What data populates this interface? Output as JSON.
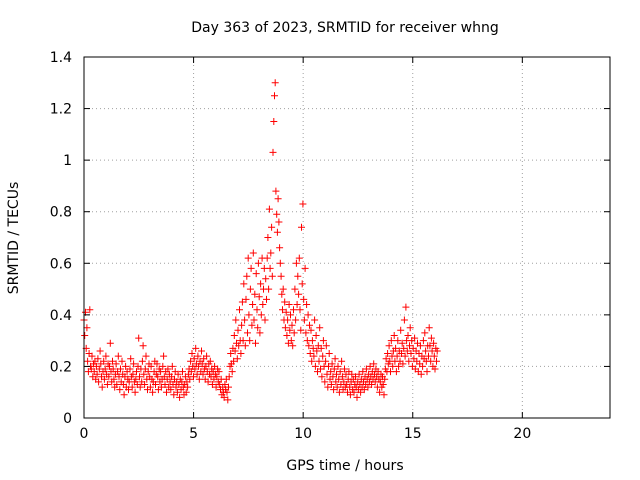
{
  "chart_data": {
    "type": "scatter",
    "title": "Day 363 of 2023, SRMTID for receiver whng",
    "xlabel": "GPS time / hours",
    "ylabel": "SRMTID / TECUs",
    "xlim": [
      0,
      24
    ],
    "ylim": [
      0,
      1.4
    ],
    "xticks": [
      0,
      5,
      10,
      15,
      20
    ],
    "xtick_labels": [
      "0",
      "5",
      "10",
      "15",
      "20"
    ],
    "yticks": [
      0,
      0.2,
      0.4,
      0.6,
      0.8,
      1.0,
      1.2,
      1.4
    ],
    "ytick_labels": [
      "0",
      "0.2",
      "0.4",
      "0.6",
      "0.8",
      "1",
      "1.2",
      "1.4"
    ],
    "grid": true,
    "marker": "+",
    "color": "#ff0000",
    "series": [
      {
        "name": "SRMTID",
        "x_start": 0.0,
        "x_step": 0.0333,
        "values": [
          0.38,
          0.32,
          0.41,
          0.27,
          0.35,
          0.22,
          0.18,
          0.25,
          0.42,
          0.2,
          0.19,
          0.24,
          0.16,
          0.21,
          0.18,
          0.22,
          0.15,
          0.2,
          0.17,
          0.23,
          0.14,
          0.19,
          0.26,
          0.21,
          0.16,
          0.12,
          0.18,
          0.22,
          0.15,
          0.19,
          0.24,
          0.17,
          0.13,
          0.21,
          0.16,
          0.2,
          0.29,
          0.18,
          0.14,
          0.22,
          0.19,
          0.15,
          0.12,
          0.17,
          0.21,
          0.13,
          0.18,
          0.24,
          0.16,
          0.11,
          0.19,
          0.14,
          0.22,
          0.17,
          0.13,
          0.09,
          0.16,
          0.2,
          0.12,
          0.18,
          0.15,
          0.11,
          0.14,
          0.19,
          0.23,
          0.16,
          0.12,
          0.17,
          0.21,
          0.14,
          0.1,
          0.15,
          0.18,
          0.13,
          0.2,
          0.31,
          0.16,
          0.12,
          0.19,
          0.14,
          0.22,
          0.28,
          0.17,
          0.13,
          0.19,
          0.24,
          0.15,
          0.11,
          0.18,
          0.21,
          0.16,
          0.12,
          0.2,
          0.15,
          0.1,
          0.14,
          0.18,
          0.22,
          0.13,
          0.17,
          0.21,
          0.16,
          0.11,
          0.19,
          0.14,
          0.18,
          0.12,
          0.15,
          0.2,
          0.24,
          0.16,
          0.13,
          0.18,
          0.1,
          0.15,
          0.19,
          0.12,
          0.17,
          0.14,
          0.11,
          0.16,
          0.2,
          0.13,
          0.09,
          0.15,
          0.18,
          0.12,
          0.14,
          0.1,
          0.17,
          0.13,
          0.08,
          0.15,
          0.11,
          0.14,
          0.18,
          0.12,
          0.09,
          0.13,
          0.16,
          0.1,
          0.14,
          0.12,
          0.17,
          0.19,
          0.15,
          0.22,
          0.18,
          0.25,
          0.2,
          0.16,
          0.23,
          0.19,
          0.27,
          0.21,
          0.17,
          0.24,
          0.2,
          0.15,
          0.22,
          0.18,
          0.26,
          0.21,
          0.17,
          0.23,
          0.19,
          0.15,
          0.2,
          0.24,
          0.18,
          0.14,
          0.21,
          0.17,
          0.22,
          0.16,
          0.19,
          0.13,
          0.18,
          0.15,
          0.2,
          0.17,
          0.12,
          0.16,
          0.19,
          0.14,
          0.18,
          0.13,
          0.11,
          0.15,
          0.09,
          0.12,
          0.1,
          0.08,
          0.13,
          0.11,
          0.15,
          0.1,
          0.07,
          0.12,
          0.16,
          0.2,
          0.25,
          0.21,
          0.18,
          0.27,
          0.22,
          0.32,
          0.26,
          0.38,
          0.29,
          0.23,
          0.34,
          0.28,
          0.42,
          0.3,
          0.25,
          0.36,
          0.45,
          0.3,
          0.52,
          0.38,
          0.28,
          0.46,
          0.55,
          0.33,
          0.62,
          0.4,
          0.3,
          0.5,
          0.58,
          0.36,
          0.44,
          0.64,
          0.38,
          0.48,
          0.29,
          0.56,
          0.42,
          0.35,
          0.6,
          0.47,
          0.33,
          0.52,
          0.4,
          0.62,
          0.44,
          0.5,
          0.58,
          0.38,
          0.54,
          0.46,
          0.62,
          0.7,
          0.5,
          0.81,
          0.58,
          0.64,
          0.74,
          0.55,
          1.03,
          1.15,
          1.25,
          1.3,
          0.88,
          0.79,
          0.72,
          0.85,
          0.76,
          0.66,
          0.6,
          0.55,
          0.48,
          0.42,
          0.5,
          0.38,
          0.45,
          0.35,
          0.41,
          0.32,
          0.38,
          0.29,
          0.44,
          0.34,
          0.4,
          0.3,
          0.36,
          0.28,
          0.42,
          0.33,
          0.5,
          0.38,
          0.6,
          0.44,
          0.55,
          0.48,
          0.62,
          0.42,
          0.34,
          0.74,
          0.52,
          0.83,
          0.46,
          0.38,
          0.58,
          0.33,
          0.44,
          0.3,
          0.4,
          0.28,
          0.36,
          0.25,
          0.34,
          0.22,
          0.3,
          0.27,
          0.24,
          0.38,
          0.2,
          0.32,
          0.26,
          0.18,
          0.28,
          0.22,
          0.35,
          0.19,
          0.27,
          0.16,
          0.24,
          0.3,
          0.2,
          0.14,
          0.22,
          0.28,
          0.17,
          0.12,
          0.2,
          0.25,
          0.15,
          0.18,
          0.13,
          0.21,
          0.16,
          0.11,
          0.19,
          0.23,
          0.14,
          0.17,
          0.12,
          0.2,
          0.15,
          0.1,
          0.18,
          0.13,
          0.22,
          0.16,
          0.11,
          0.14,
          0.19,
          0.12,
          0.17,
          0.13,
          0.1,
          0.15,
          0.18,
          0.12,
          0.09,
          0.14,
          0.17,
          0.11,
          0.15,
          0.1,
          0.13,
          0.16,
          0.12,
          0.08,
          0.14,
          0.11,
          0.17,
          0.13,
          0.1,
          0.15,
          0.12,
          0.18,
          0.14,
          0.11,
          0.16,
          0.13,
          0.19,
          0.15,
          0.12,
          0.17,
          0.14,
          0.2,
          0.16,
          0.13,
          0.18,
          0.15,
          0.21,
          0.17,
          0.14,
          0.19,
          0.16,
          0.12,
          0.18,
          0.15,
          0.1,
          0.14,
          0.17,
          0.12,
          0.16,
          0.13,
          0.09,
          0.15,
          0.19,
          0.23,
          0.18,
          0.25,
          0.21,
          0.28,
          0.22,
          0.18,
          0.3,
          0.24,
          0.2,
          0.26,
          0.32,
          0.22,
          0.27,
          0.18,
          0.24,
          0.3,
          0.2,
          0.26,
          0.22,
          0.34,
          0.25,
          0.29,
          0.21,
          0.27,
          0.38,
          0.24,
          0.43,
          0.3,
          0.26,
          0.32,
          0.22,
          0.28,
          0.35,
          0.25,
          0.3,
          0.2,
          0.27,
          0.23,
          0.31,
          0.19,
          0.26,
          0.22,
          0.29,
          0.18,
          0.25,
          0.21,
          0.28,
          0.17,
          0.24,
          0.2,
          0.3,
          0.23,
          0.33,
          0.26,
          0.22,
          0.18,
          0.28,
          0.24,
          0.35,
          0.28,
          0.22,
          0.31,
          0.26,
          0.2,
          0.29,
          0.24,
          0.19,
          0.27,
          0.22,
          0.26
        ]
      }
    ]
  }
}
